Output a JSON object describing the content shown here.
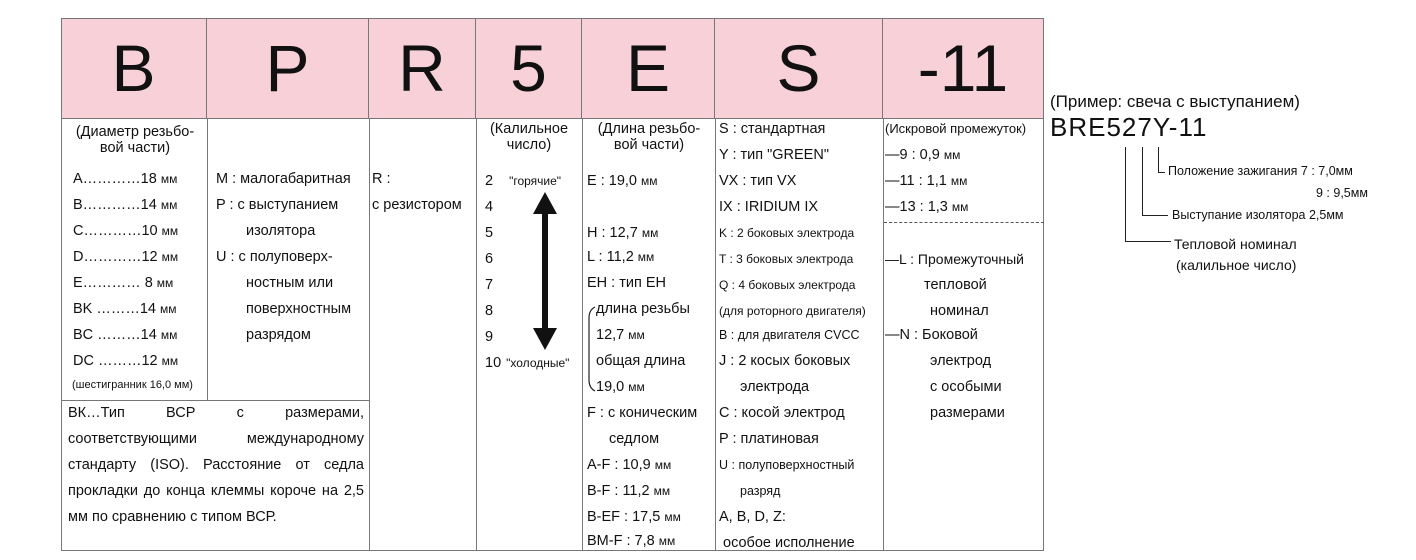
{
  "headers": [
    "B",
    "P",
    "R",
    "5",
    "E",
    "S",
    "-11"
  ],
  "col1": {
    "caption_1": "(Диаметр резьбо-",
    "caption_2": "вой части)",
    "rows": [
      {
        "k": "A…………18",
        "u": "мм"
      },
      {
        "k": "B…………14",
        "u": "мм"
      },
      {
        "k": "C…………10",
        "u": "мм"
      },
      {
        "k": "D…………12",
        "u": "мм"
      },
      {
        "k": "E………… 8",
        "u": "мм"
      },
      {
        "k": "BK ………14",
        "u": "мм"
      },
      {
        "k": "BC ………14",
        "u": "мм"
      },
      {
        "k": "DC ………12",
        "u": "мм"
      }
    ],
    "hex_note": "(шестигранник 16,0 мм)",
    "paragraph": "ВК…Тип ВСР с размерами, соответствующими международному стандарту (ISO). Расстояние от седла прокладки до конца клеммы короче на 2,5 мм по сравнению с типом ВСР."
  },
  "col2": [
    "M : малогабаритная",
    "P  : с выступанием",
    "изолятора",
    "U  : с полуповерх-",
    "ностным или",
    "поверхностным",
    "разрядом"
  ],
  "col3": [
    "R :",
    "с резистором"
  ],
  "col4": {
    "caption_1": "(Калильное",
    "caption_2": "число)",
    "n2": "2",
    "hot": "\"горячие\"",
    "n4": "4",
    "n5": "5",
    "n6": "6",
    "n7": "7",
    "n8": "8",
    "n9": "9",
    "n10": "10",
    "cold": "\"холодные\""
  },
  "col5": {
    "caption_1": "(Длина резьбо-",
    "caption_2": "вой части)",
    "e": "E : 19,0",
    "mm": "мм",
    "h": "H : 12,7",
    "l": "L : 11,2",
    "eh": "EH : тип EH",
    "eh1": "длина резьбы",
    "eh2": "12,7",
    "eh3": "общая длина",
    "eh4": "19,0",
    "f1": "F : с коническим",
    "f2": "седлом",
    "af": "A-F :   10,9",
    "bf": "B-F :   11,2",
    "bef": "B-EF : 17,5",
    "bmf": "BM-F : 7,8"
  },
  "col6": [
    "S : стандартная",
    "Y : тип \"GREEN\"",
    "VX : тип  VX",
    "IX : IRIDIUM IX",
    "K : 2 боковых электрода",
    "T : 3 боковых электрода",
    "Q : 4 боковых электрода",
    "(для роторного двигателя)",
    "B : для двигателя CVCC",
    "J : 2 косых боковых",
    "электрода",
    "C : косой электрод",
    "P : платиновая",
    "U : полуповерхностный",
    "разряд",
    "A, B, D, Z:",
    "особое исполнение"
  ],
  "col7": {
    "caption": "(Искровой промежуток)",
    "g9": "—9   : 0,9",
    "g11": "—11 : 1,1",
    "g13": "—13 : 1,3",
    "mm": "мм",
    "l1": "—L : Промежуточный",
    "l2": "тепловой",
    "l3": "номинал",
    "n1": "—N : Боковой",
    "n2": "электрод",
    "n3": "с особыми",
    "n4": "размерами"
  },
  "example": {
    "title": "(Пример: свеча с выступанием)",
    "code": "BRE527Y-11",
    "pos1": "Положение зажигания 7 : 7,0мм",
    "pos2": "9 : 9,5мм",
    "proj": "Выступание изолятора 2,5мм",
    "heat1": "Тепловой номинал",
    "heat2": "(калильное число)"
  }
}
